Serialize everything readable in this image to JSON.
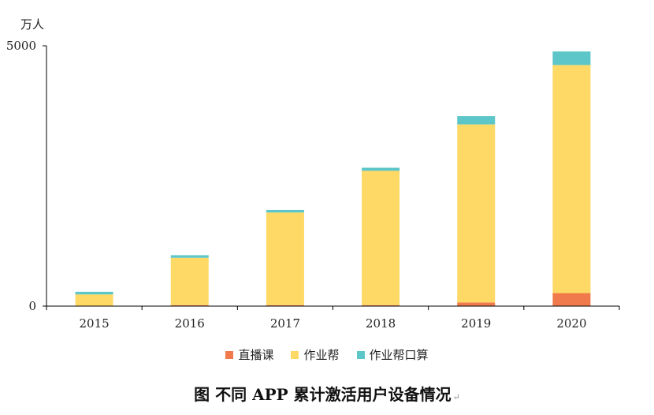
{
  "chart_data": {
    "type": "bar",
    "stacked": true,
    "categories": [
      "2015",
      "2016",
      "2017",
      "2018",
      "2019",
      "2020"
    ],
    "series": [
      {
        "name": "直播课",
        "color": "#F07A4C",
        "values": [
          5,
          18,
          18,
          18,
          70,
          250
        ]
      },
      {
        "name": "作业帮",
        "color": "#FFD966",
        "values": [
          220,
          910,
          1780,
          2580,
          3420,
          4380
        ]
      },
      {
        "name": "作业帮口算",
        "color": "#5DC6C8",
        "values": [
          50,
          50,
          50,
          60,
          160,
          260
        ]
      }
    ],
    "ylim": [
      0,
      5000
    ],
    "yticks": [
      0,
      5000
    ],
    "ylabel": "万人",
    "legend_position": "bottom",
    "grid": false,
    "caption": "图 不同 APP 累计激活用户设备情况",
    "caption_mark": "↵"
  }
}
